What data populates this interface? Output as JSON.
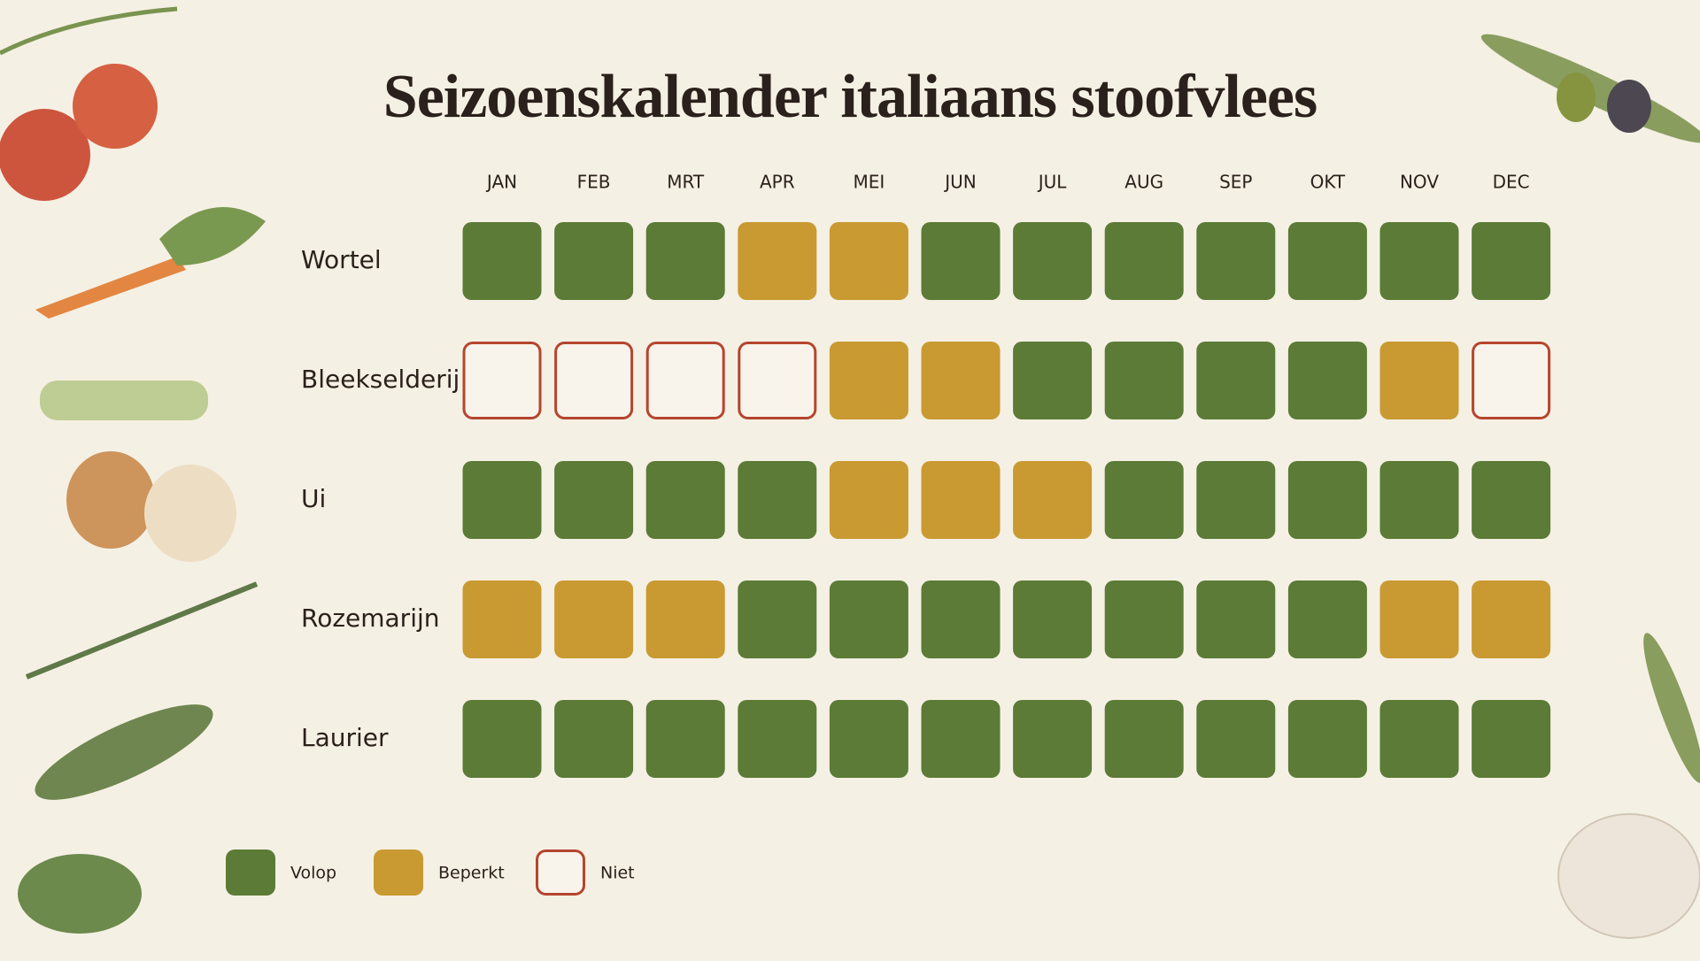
{
  "chart_data": {
    "type": "heatmap",
    "title": "Seizoenskalender italiaans stoofvlees",
    "categories": [
      "JAN",
      "FEB",
      "MRT",
      "APR",
      "MEI",
      "JUN",
      "JUL",
      "AUG",
      "SEP",
      "OKT",
      "NOV",
      "DEC"
    ],
    "legend": [
      {
        "label": "Volop",
        "color": "#5b7b36",
        "style": "fill"
      },
      {
        "label": "Beperkt",
        "color": "#c89a31",
        "style": "fill"
      },
      {
        "label": "Niet",
        "color": "#b5452e",
        "style": "outline"
      }
    ],
    "series": [
      {
        "name": "Wortel",
        "values": [
          "Volop",
          "Volop",
          "Volop",
          "Beperkt",
          "Beperkt",
          "Volop",
          "Volop",
          "Volop",
          "Volop",
          "Volop",
          "Volop",
          "Volop"
        ]
      },
      {
        "name": "Bleekselderij",
        "values": [
          "Niet",
          "Niet",
          "Niet",
          "Niet",
          "Beperkt",
          "Beperkt",
          "Volop",
          "Volop",
          "Volop",
          "Volop",
          "Beperkt",
          "Niet"
        ]
      },
      {
        "name": "Ui",
        "values": [
          "Volop",
          "Volop",
          "Volop",
          "Volop",
          "Beperkt",
          "Beperkt",
          "Beperkt",
          "Volop",
          "Volop",
          "Volop",
          "Volop",
          "Volop"
        ]
      },
      {
        "name": "Rozemarijn",
        "values": [
          "Beperkt",
          "Beperkt",
          "Beperkt",
          "Volop",
          "Volop",
          "Volop",
          "Volop",
          "Volop",
          "Volop",
          "Volop",
          "Beperkt",
          "Beperkt"
        ]
      },
      {
        "name": "Laurier",
        "values": [
          "Volop",
          "Volop",
          "Volop",
          "Volop",
          "Volop",
          "Volop",
          "Volop",
          "Volop",
          "Volop",
          "Volop",
          "Volop",
          "Volop"
        ]
      }
    ]
  }
}
